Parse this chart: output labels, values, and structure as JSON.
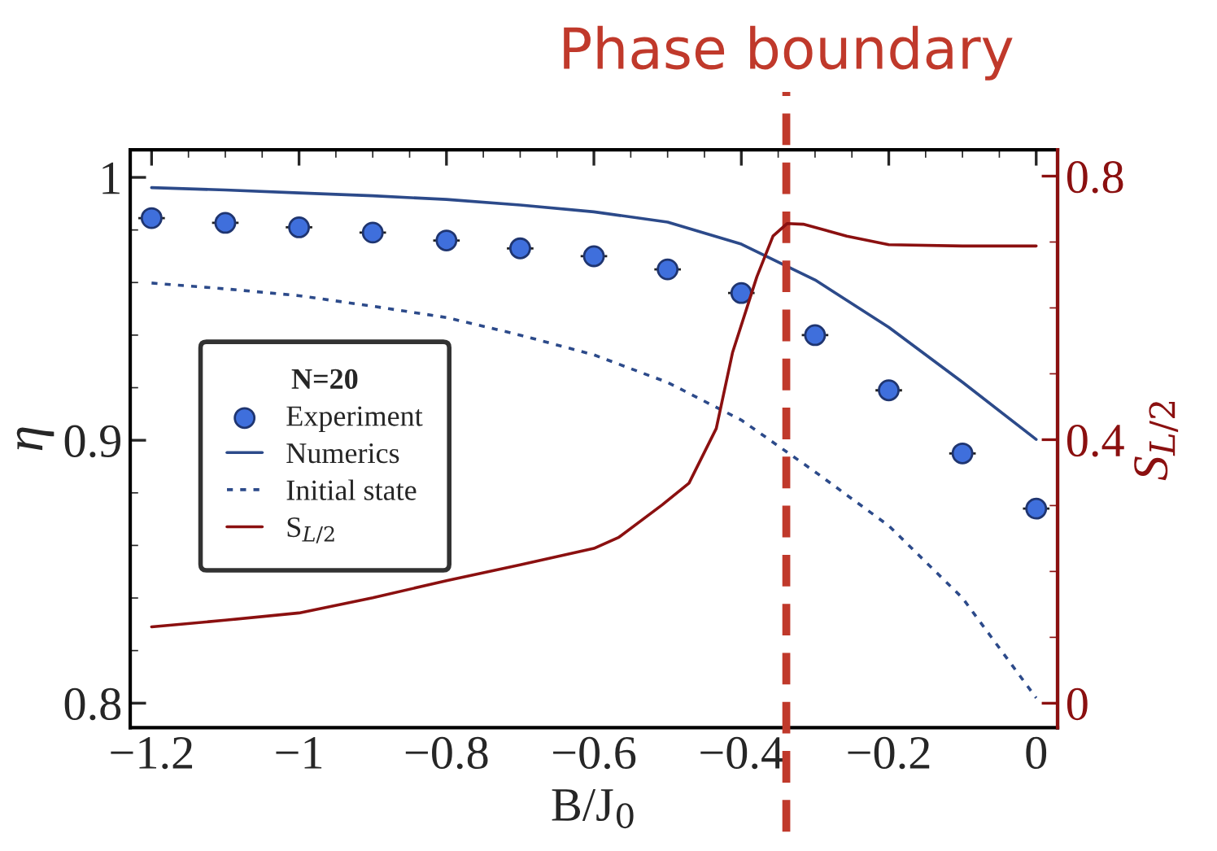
{
  "chart_data": {
    "type": "line",
    "xlabel": "B/J$_{0}$",
    "ylabel": "η",
    "y2label": "S$_{L/2}$",
    "legend_title": "N=20",
    "xlim": [
      -1.229,
      0.029
    ],
    "xticks": [
      -1.2,
      -1,
      -0.8,
      -0.6,
      -0.4,
      -0.2,
      0
    ],
    "ylim": [
      0.7907,
      1.0105
    ],
    "yticks": [
      0.8,
      0.9,
      1
    ],
    "y2lim": [
      -0.037,
      0.84
    ],
    "y2ticks": [
      0,
      0.4,
      0.8
    ],
    "grid": false,
    "legend": "center left",
    "series": [
      {
        "name": "Experiment",
        "type": "scatter",
        "marker": "circle",
        "color": "#3f6fdc",
        "x": [
          -1.2,
          -1.1,
          -1.0,
          -0.9,
          -0.8,
          -0.7,
          -0.6,
          -0.5,
          -0.4,
          -0.3,
          -0.2,
          -0.1,
          0
        ],
        "values": [
          0.9845,
          0.9827,
          0.981,
          0.979,
          0.976,
          0.973,
          0.97,
          0.965,
          0.956,
          0.94,
          0.919,
          0.895,
          0.874
        ],
        "xerrors": [
          0.018,
          0.018,
          0.018,
          0.018,
          0.018,
          0.018,
          0.018,
          0.018,
          0.018,
          0.018,
          0.018,
          0.018,
          0.018
        ]
      },
      {
        "name": "Numerics",
        "line_style": "solid",
        "color": "#2c4a8a",
        "x": [
          -1.2,
          -1.1,
          -1.0,
          -0.9,
          -0.8,
          -0.7,
          -0.6,
          -0.5,
          -0.4,
          -0.3,
          -0.2,
          -0.1,
          0
        ],
        "values": [
          0.9961,
          0.9952,
          0.9941,
          0.993,
          0.9916,
          0.9895,
          0.9869,
          0.983,
          0.9746,
          0.961,
          0.943,
          0.9221,
          0.9003
        ]
      },
      {
        "name": "Initial state",
        "line_style": "dotted",
        "color": "#2c4a8a",
        "x": [
          -1.2,
          -1.1,
          -1.0,
          -0.9,
          -0.8,
          -0.7,
          -0.6,
          -0.5,
          -0.4,
          -0.3,
          -0.2,
          -0.1,
          0
        ],
        "values": [
          0.9598,
          0.9576,
          0.955,
          0.951,
          0.9467,
          0.94,
          0.9325,
          0.922,
          0.9077,
          0.888,
          0.8675,
          0.84,
          0.802
        ]
      },
      {
        "name": "S$_{L/2}$",
        "line_style": "solid",
        "axis": "y2",
        "color": "#8b1010",
        "x": [
          -1.2,
          -1.1,
          -1.0,
          -0.9,
          -0.8,
          -0.7,
          -0.6,
          -0.566,
          -0.5075,
          -0.471,
          -0.434,
          -0.412,
          -0.379,
          -0.357,
          -0.338,
          -0.316,
          -0.257,
          -0.2,
          -0.1,
          0
        ],
        "values": [
          0.116,
          0.126,
          0.137,
          0.16,
          0.186,
          0.21,
          0.235,
          0.252,
          0.301,
          0.334,
          0.417,
          0.532,
          0.647,
          0.709,
          0.728,
          0.727,
          0.709,
          0.696,
          0.694,
          0.694
        ]
      }
    ],
    "ref_lines": [
      {
        "axis": "x",
        "value": -0.339,
        "label": "Phase boundary",
        "color": "#c0392b",
        "line_style": "dashed"
      }
    ]
  }
}
